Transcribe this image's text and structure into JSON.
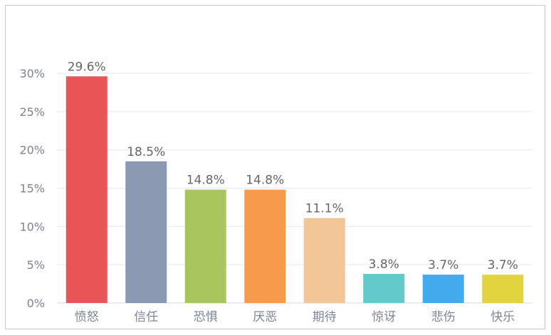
{
  "chart_data": {
    "type": "bar",
    "categories": [
      "愤怒",
      "信任",
      "恐惧",
      "厌恶",
      "期待",
      "惊讶",
      "悲伤",
      "快乐"
    ],
    "values": [
      29.6,
      18.5,
      14.8,
      14.8,
      11.1,
      3.8,
      3.7,
      3.7
    ],
    "value_labels": [
      "29.6%",
      "18.5%",
      "14.8%",
      "14.8%",
      "11.1%",
      "3.8%",
      "3.7%",
      "3.7%"
    ],
    "colors": [
      "#e95556",
      "#8c99b2",
      "#a8c65d",
      "#f89a4b",
      "#f1c598",
      "#63c9c8",
      "#43aaee",
      "#e2d43f"
    ],
    "yticks": [
      0,
      5,
      10,
      15,
      20,
      25,
      30
    ],
    "ytick_labels": [
      "0%",
      "5%",
      "10%",
      "15%",
      "20%",
      "25%",
      "30%"
    ],
    "ylim": [
      0,
      30
    ],
    "grid": true,
    "title": "",
    "xlabel": "",
    "ylabel": ""
  }
}
